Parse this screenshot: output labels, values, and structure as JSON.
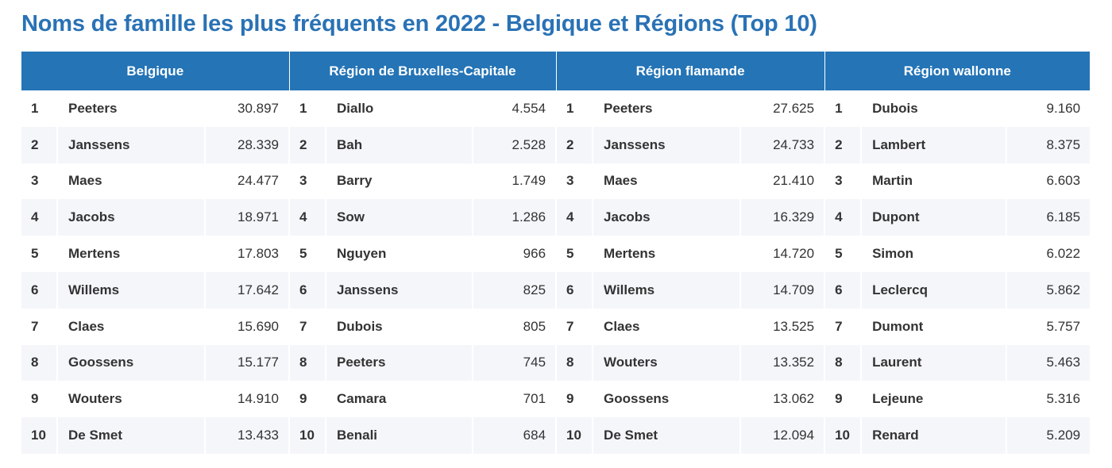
{
  "title": "Noms de famille les plus fréquents en 2022 - Belgique et Régions (Top 10)",
  "columns": [
    "Belgique",
    "Région de Bruxelles-Capitale",
    "Région flamande",
    "Région wallonne"
  ],
  "rows": [
    [
      [
        "1",
        "Peeters",
        "30.897"
      ],
      [
        "1",
        "Diallo",
        "4.554"
      ],
      [
        "1",
        "Peeters",
        "27.625"
      ],
      [
        "1",
        "Dubois",
        "9.160"
      ]
    ],
    [
      [
        "2",
        "Janssens",
        "28.339"
      ],
      [
        "2",
        "Bah",
        "2.528"
      ],
      [
        "2",
        "Janssens",
        "24.733"
      ],
      [
        "2",
        "Lambert",
        "8.375"
      ]
    ],
    [
      [
        "3",
        "Maes",
        "24.477"
      ],
      [
        "3",
        "Barry",
        "1.749"
      ],
      [
        "3",
        "Maes",
        "21.410"
      ],
      [
        "3",
        "Martin",
        "6.603"
      ]
    ],
    [
      [
        "4",
        "Jacobs",
        "18.971"
      ],
      [
        "4",
        "Sow",
        "1.286"
      ],
      [
        "4",
        "Jacobs",
        "16.329"
      ],
      [
        "4",
        "Dupont",
        "6.185"
      ]
    ],
    [
      [
        "5",
        "Mertens",
        "17.803"
      ],
      [
        "5",
        "Nguyen",
        "966"
      ],
      [
        "5",
        "Mertens",
        "14.720"
      ],
      [
        "5",
        "Simon",
        "6.022"
      ]
    ],
    [
      [
        "6",
        "Willems",
        "17.642"
      ],
      [
        "6",
        "Janssens",
        "825"
      ],
      [
        "6",
        "Willems",
        "14.709"
      ],
      [
        "6",
        "Leclercq",
        "5.862"
      ]
    ],
    [
      [
        "7",
        "Claes",
        "15.690"
      ],
      [
        "7",
        "Dubois",
        "805"
      ],
      [
        "7",
        "Claes",
        "13.525"
      ],
      [
        "7",
        "Dumont",
        "5.757"
      ]
    ],
    [
      [
        "8",
        "Goossens",
        "15.177"
      ],
      [
        "8",
        "Peeters",
        "745"
      ],
      [
        "8",
        "Wouters",
        "13.352"
      ],
      [
        "8",
        "Laurent",
        "5.463"
      ]
    ],
    [
      [
        "9",
        "Wouters",
        "14.910"
      ],
      [
        "9",
        "Camara",
        "701"
      ],
      [
        "9",
        "Goossens",
        "13.062"
      ],
      [
        "9",
        "Lejeune",
        "5.316"
      ]
    ],
    [
      [
        "10",
        "De Smet",
        "13.433"
      ],
      [
        "10",
        "Benali",
        "684"
      ],
      [
        "10",
        "De Smet",
        "12.094"
      ],
      [
        "10",
        "Renard",
        "5.209"
      ]
    ]
  ]
}
